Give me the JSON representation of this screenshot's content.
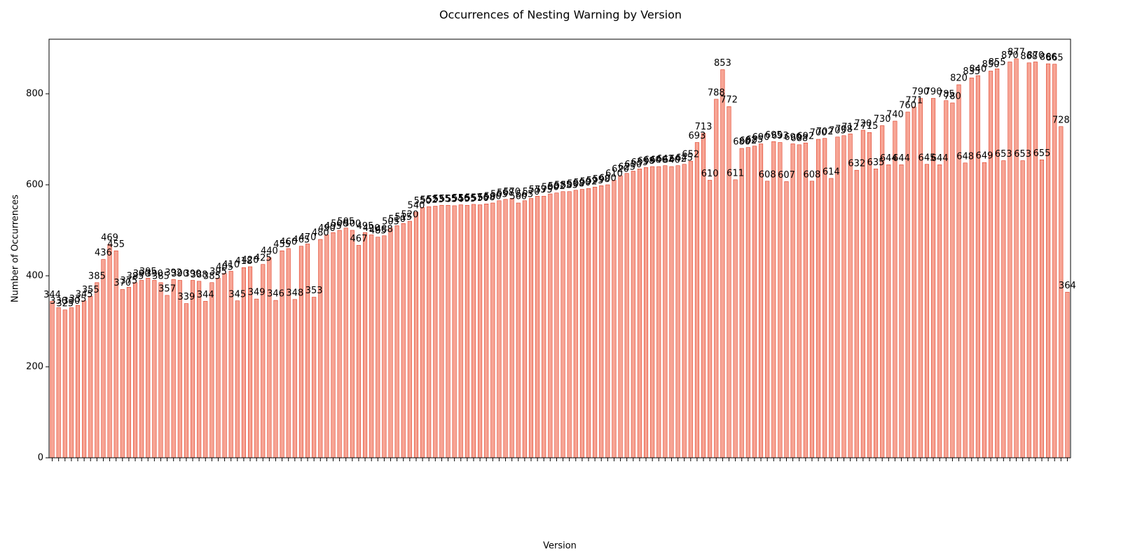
{
  "chart_data": {
    "type": "bar",
    "title": "Occurrences of Nesting Warning by Version",
    "x_label": "Version",
    "y_label": "Number of Occurrences",
    "categories": [
      null,
      null,
      null,
      null,
      null,
      null,
      null,
      null,
      null,
      null,
      null,
      null,
      null,
      null,
      null,
      null,
      null,
      null,
      null,
      null,
      null,
      null,
      null,
      null,
      null,
      null,
      null,
      null,
      null,
      null,
      null,
      null,
      null,
      null,
      null,
      null,
      null,
      null,
      null,
      null,
      null,
      null,
      null,
      null,
      null,
      null,
      null,
      null,
      null,
      null,
      null,
      null,
      null,
      null,
      null,
      null,
      null,
      null,
      null,
      null,
      null,
      null,
      null,
      null,
      null,
      null,
      null,
      null,
      null,
      null,
      null,
      null,
      null,
      null,
      null,
      null,
      null,
      null,
      null,
      null,
      null,
      null,
      null,
      null,
      null,
      null,
      null,
      null,
      null,
      null,
      null,
      null,
      null,
      null,
      null,
      null,
      null,
      null,
      null,
      null,
      null,
      null,
      null,
      null,
      null,
      null,
      null,
      null,
      null,
      null,
      null,
      null,
      null,
      null,
      null,
      null,
      null,
      null,
      null,
      null,
      null,
      null,
      null,
      null,
      null,
      null,
      null,
      null,
      null,
      null,
      null,
      null,
      null,
      null,
      null,
      null,
      null,
      null,
      null,
      null,
      null,
      null,
      null,
      null,
      null,
      null,
      null,
      null,
      null,
      null,
      null,
      null,
      null,
      null,
      null,
      null,
      null,
      null,
      null,
      null
    ],
    "values": [
      344,
      330,
      325,
      330,
      335,
      345,
      355,
      385,
      436,
      469,
      455,
      370,
      375,
      385,
      390,
      395,
      390,
      385,
      357,
      392,
      390,
      339,
      390,
      388,
      344,
      385,
      395,
      405,
      410,
      345,
      418,
      420,
      349,
      425,
      440,
      346,
      455,
      460,
      348,
      465,
      470,
      353,
      480,
      490,
      495,
      500,
      505,
      500,
      467,
      495,
      490,
      485,
      488,
      505,
      510,
      515,
      520,
      540,
      550,
      552,
      553,
      555,
      555,
      554,
      556,
      555,
      557,
      556,
      558,
      560,
      565,
      568,
      570,
      560,
      565,
      570,
      575,
      575,
      580,
      582,
      585,
      585,
      588,
      590,
      592,
      595,
      598,
      600,
      610,
      620,
      625,
      630,
      635,
      638,
      640,
      640,
      642,
      640,
      642,
      645,
      652,
      693,
      713,
      610,
      788,
      853,
      772,
      611,
      680,
      682,
      685,
      690,
      608,
      695,
      693,
      607,
      690,
      688,
      692,
      608,
      700,
      702,
      614,
      705,
      708,
      712,
      632,
      720,
      715,
      635,
      730,
      644,
      740,
      644,
      760,
      771,
      790,
      645,
      790,
      644,
      785,
      780,
      820,
      648,
      835,
      840,
      649,
      850,
      855,
      653,
      870,
      877,
      653,
      868,
      870,
      655,
      866,
      865,
      728,
      364
    ],
    "color": "#f7a595",
    "edge_color": "#e03a22",
    "ylim": [
      0,
      920
    ],
    "yticks": [
      0,
      200,
      400,
      600,
      800
    ],
    "grid": false
  }
}
